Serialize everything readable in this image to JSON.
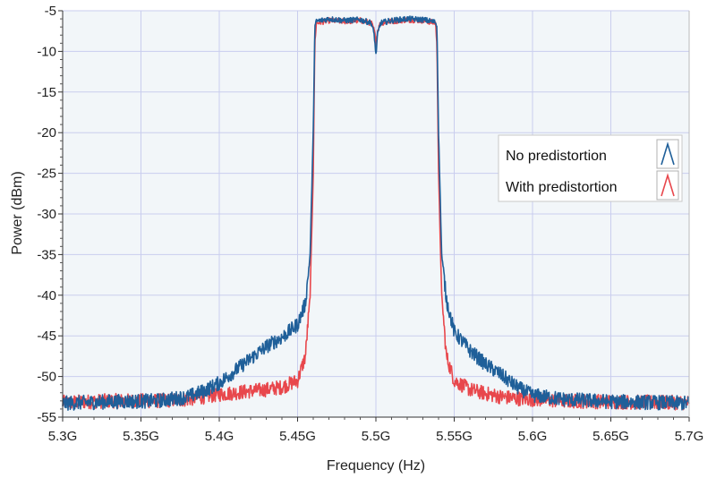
{
  "chart_data": {
    "type": "line",
    "title": "",
    "xlabel": "Frequency (Hz)",
    "ylabel": "Power (dBm)",
    "xlim": [
      5.3,
      5.7
    ],
    "ylim": [
      -55,
      -5
    ],
    "x_unit": "GHz",
    "x_ticks": [
      5.3,
      5.35,
      5.4,
      5.45,
      5.5,
      5.55,
      5.6,
      5.65,
      5.7
    ],
    "x_tick_labels": [
      "5.3G",
      "5.35G",
      "5.4G",
      "5.45G",
      "5.5G",
      "5.55G",
      "5.6G",
      "5.65G",
      "5.7G"
    ],
    "y_ticks": [
      -5,
      -10,
      -15,
      -20,
      -25,
      -30,
      -35,
      -40,
      -45,
      -50,
      -55
    ],
    "y_tick_labels": [
      "-5",
      "-10",
      "-15",
      "-20",
      "-25",
      "-30",
      "-35",
      "-40",
      "-45",
      "-50",
      "-55"
    ],
    "grid": true,
    "background": "#f2f6f9",
    "grid_color": "#c9cdee",
    "legend_position": "right",
    "series": [
      {
        "name": "No predistortion",
        "color": "#1f5f99",
        "x": [
          5.3,
          5.33,
          5.36,
          5.38,
          5.39,
          5.4,
          5.41,
          5.42,
          5.43,
          5.44,
          5.45,
          5.455,
          5.458,
          5.46,
          5.461,
          5.462,
          5.47,
          5.48,
          5.49,
          5.497,
          5.499,
          5.5,
          5.501,
          5.503,
          5.51,
          5.52,
          5.53,
          5.538,
          5.539,
          5.54,
          5.542,
          5.545,
          5.55,
          5.56,
          5.57,
          5.58,
          5.59,
          5.6,
          5.62,
          5.65,
          5.68,
          5.7
        ],
        "y": [
          -53.3,
          -53.1,
          -53.0,
          -52.5,
          -51.8,
          -50.8,
          -49.3,
          -47.8,
          -46.3,
          -45.2,
          -43.6,
          -41.0,
          -35.0,
          -20.0,
          -7.0,
          -6.3,
          -6.0,
          -6.2,
          -6.1,
          -6.5,
          -8.0,
          -10.5,
          -8.0,
          -6.5,
          -6.2,
          -6.0,
          -6.1,
          -6.4,
          -7.0,
          -20.0,
          -35.0,
          -40.5,
          -44.5,
          -46.8,
          -48.5,
          -49.8,
          -51.3,
          -52.3,
          -52.8,
          -53.1,
          -53.2,
          -53.3
        ]
      },
      {
        "name": "With predistortion",
        "color": "#e8474c",
        "x": [
          5.3,
          5.33,
          5.36,
          5.38,
          5.39,
          5.4,
          5.41,
          5.42,
          5.43,
          5.44,
          5.45,
          5.455,
          5.458,
          5.46,
          5.461,
          5.462,
          5.47,
          5.48,
          5.49,
          5.497,
          5.499,
          5.5,
          5.501,
          5.503,
          5.51,
          5.52,
          5.53,
          5.538,
          5.539,
          5.54,
          5.542,
          5.545,
          5.55,
          5.56,
          5.57,
          5.58,
          5.59,
          5.6,
          5.62,
          5.65,
          5.68,
          5.7
        ],
        "y": [
          -53.2,
          -53.0,
          -53.0,
          -52.8,
          -52.5,
          -52.2,
          -52.0,
          -51.8,
          -51.6,
          -51.3,
          -50.5,
          -47.5,
          -40.0,
          -25.0,
          -9.0,
          -6.5,
          -6.2,
          -6.3,
          -6.2,
          -6.5,
          -7.5,
          -9.0,
          -7.5,
          -6.5,
          -6.3,
          -6.1,
          -6.2,
          -6.5,
          -9.0,
          -25.0,
          -40.0,
          -47.5,
          -50.5,
          -51.6,
          -52.1,
          -52.5,
          -52.7,
          -52.8,
          -53.0,
          -53.1,
          -53.2,
          -53.2
        ]
      }
    ]
  }
}
